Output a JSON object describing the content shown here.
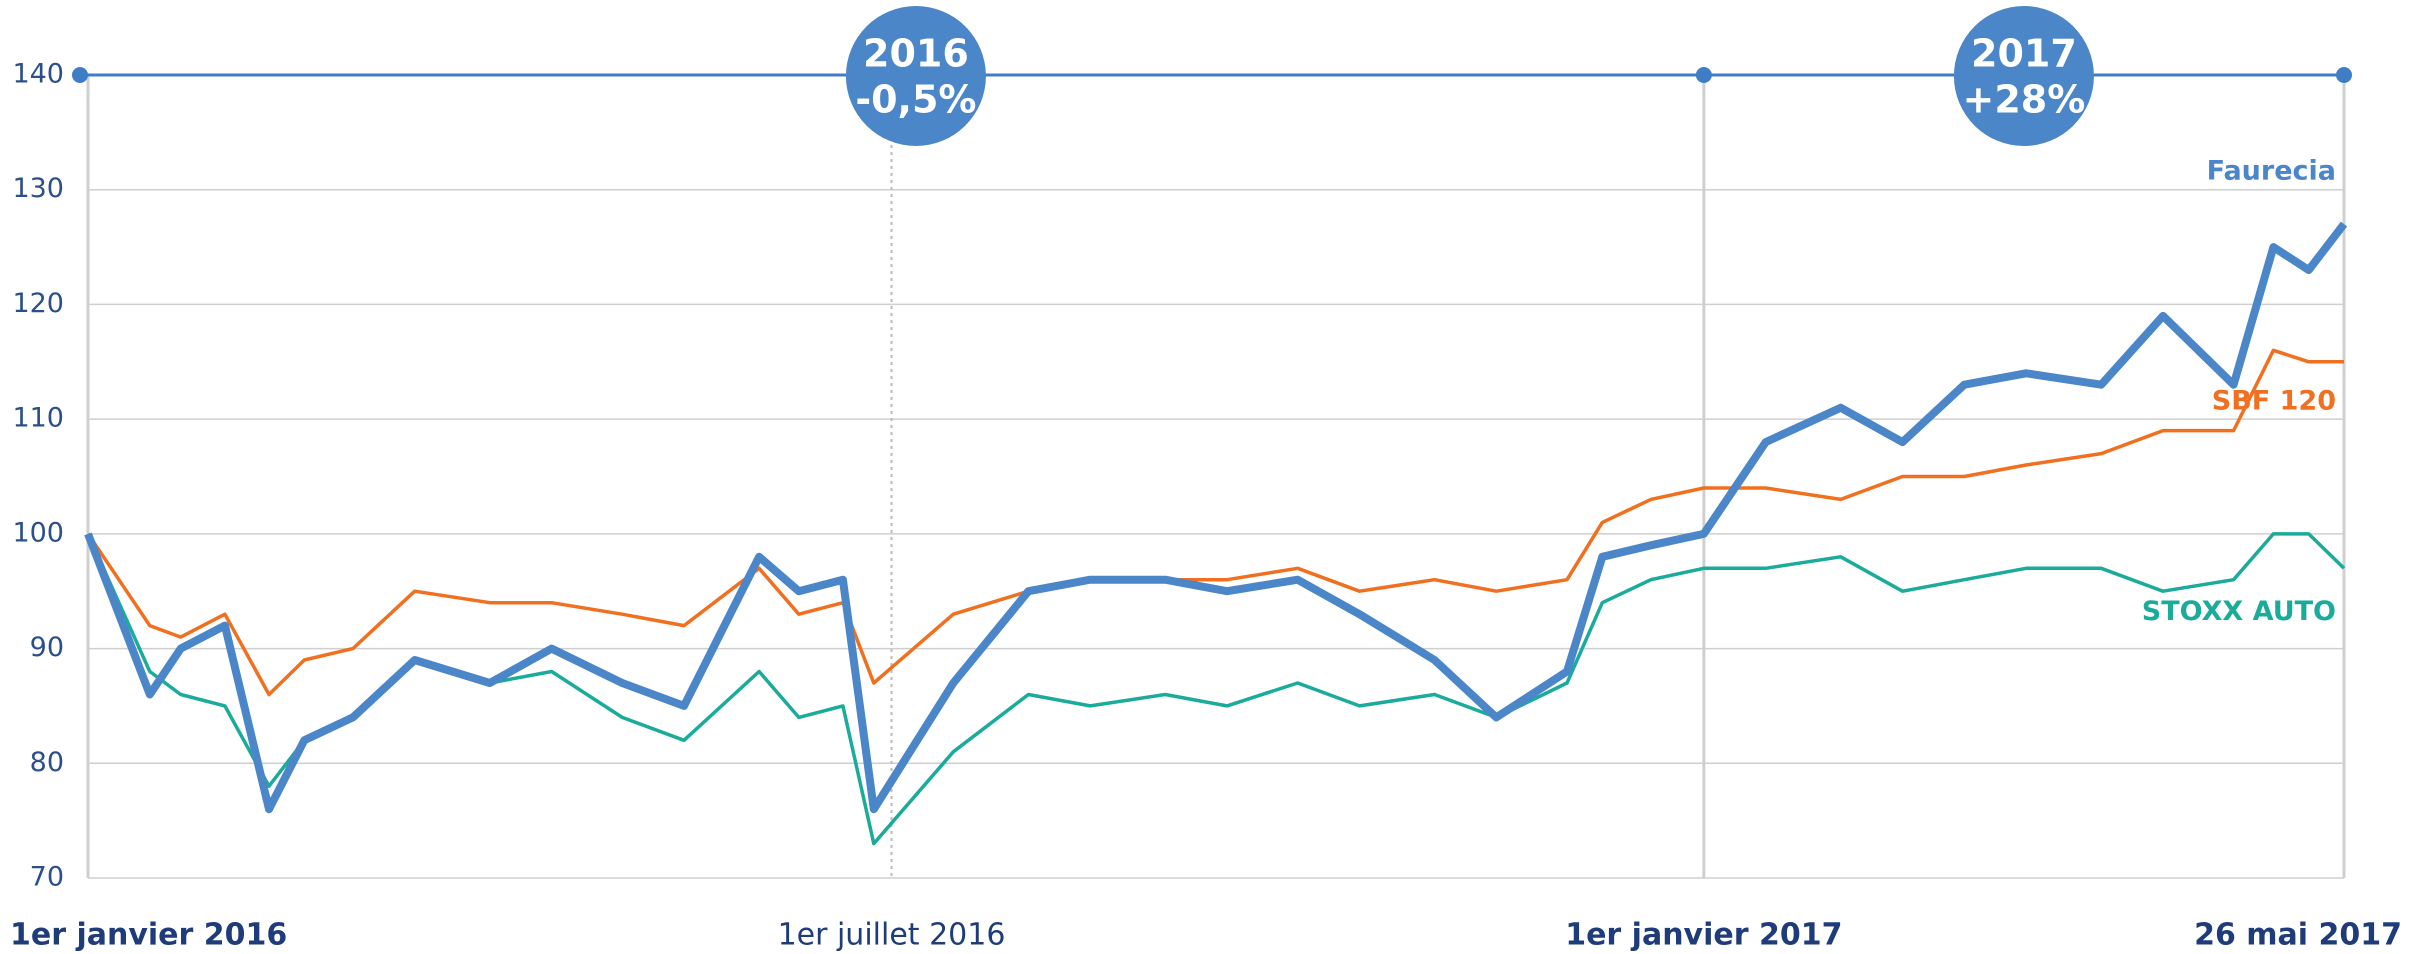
{
  "chart_data": {
    "type": "line",
    "x": [
      "2016-01-01",
      "2016-01-08",
      "2016-01-15",
      "2016-01-22",
      "2016-02-01",
      "2016-02-11",
      "2016-02-19",
      "2016-03-01",
      "2016-03-15",
      "2016-04-01",
      "2016-04-15",
      "2016-05-01",
      "2016-05-15",
      "2016-06-01",
      "2016-06-10",
      "2016-06-20",
      "2016-06-27",
      "2016-07-15",
      "2016-08-01",
      "2016-08-15",
      "2016-09-01",
      "2016-09-15",
      "2016-10-01",
      "2016-10-15",
      "2016-11-01",
      "2016-11-15",
      "2016-12-01",
      "2016-12-09",
      "2016-12-20",
      "2017-01-01",
      "2017-01-15",
      "2017-02-01",
      "2017-02-15",
      "2017-03-01",
      "2017-03-15",
      "2017-04-01",
      "2017-04-15",
      "2017-05-01",
      "2017-05-10",
      "2017-05-18",
      "2017-05-26"
    ],
    "series": [
      {
        "name": "Faurecia",
        "color": "#4a86c8",
        "values": [
          100,
          93,
          86,
          90,
          92,
          76,
          82,
          84,
          89,
          87,
          90,
          87,
          85,
          98,
          95,
          96,
          76,
          87,
          95,
          96,
          96,
          95,
          96,
          93,
          89,
          84,
          88,
          98,
          99,
          100,
          108,
          111,
          108,
          113,
          114,
          113,
          119,
          113,
          125,
          123,
          127
        ]
      },
      {
        "name": "SBF 120",
        "color": "#f07020",
        "values": [
          100,
          96,
          92,
          91,
          93,
          86,
          89,
          90,
          95,
          94,
          94,
          93,
          92,
          97,
          93,
          94,
          87,
          93,
          95,
          96,
          96,
          96,
          97,
          95,
          96,
          95,
          96,
          101,
          103,
          104,
          104,
          103,
          105,
          105,
          106,
          107,
          109,
          109,
          116,
          115,
          115
        ]
      },
      {
        "name": "STOXX AUTO",
        "color": "#1aab9b",
        "values": [
          100,
          94,
          88,
          86,
          85,
          78,
          82,
          84,
          89,
          87,
          88,
          84,
          82,
          88,
          84,
          85,
          73,
          81,
          86,
          85,
          86,
          85,
          87,
          85,
          86,
          84,
          87,
          94,
          96,
          97,
          97,
          98,
          95,
          96,
          97,
          97,
          95,
          96,
          100,
          100,
          97
        ]
      }
    ],
    "ylim": [
      70,
      140
    ],
    "yticks": [
      70,
      80,
      90,
      100,
      110,
      120,
      130,
      140
    ],
    "xlim": [
      "2016-01-01",
      "2017-05-26"
    ],
    "xticks": [
      {
        "value": "2016-01-01",
        "label": "1er janvier 2016"
      },
      {
        "value": "2016-07-01",
        "label": "1er juillet 2016"
      },
      {
        "value": "2017-01-01",
        "label": "1er janvier 2017"
      },
      {
        "value": "2017-05-26",
        "label": "26 mai 2017"
      }
    ],
    "annotations": [
      [
        "2016",
        "-0,5%"
      ],
      [
        "2017",
        "+28%"
      ]
    ]
  }
}
